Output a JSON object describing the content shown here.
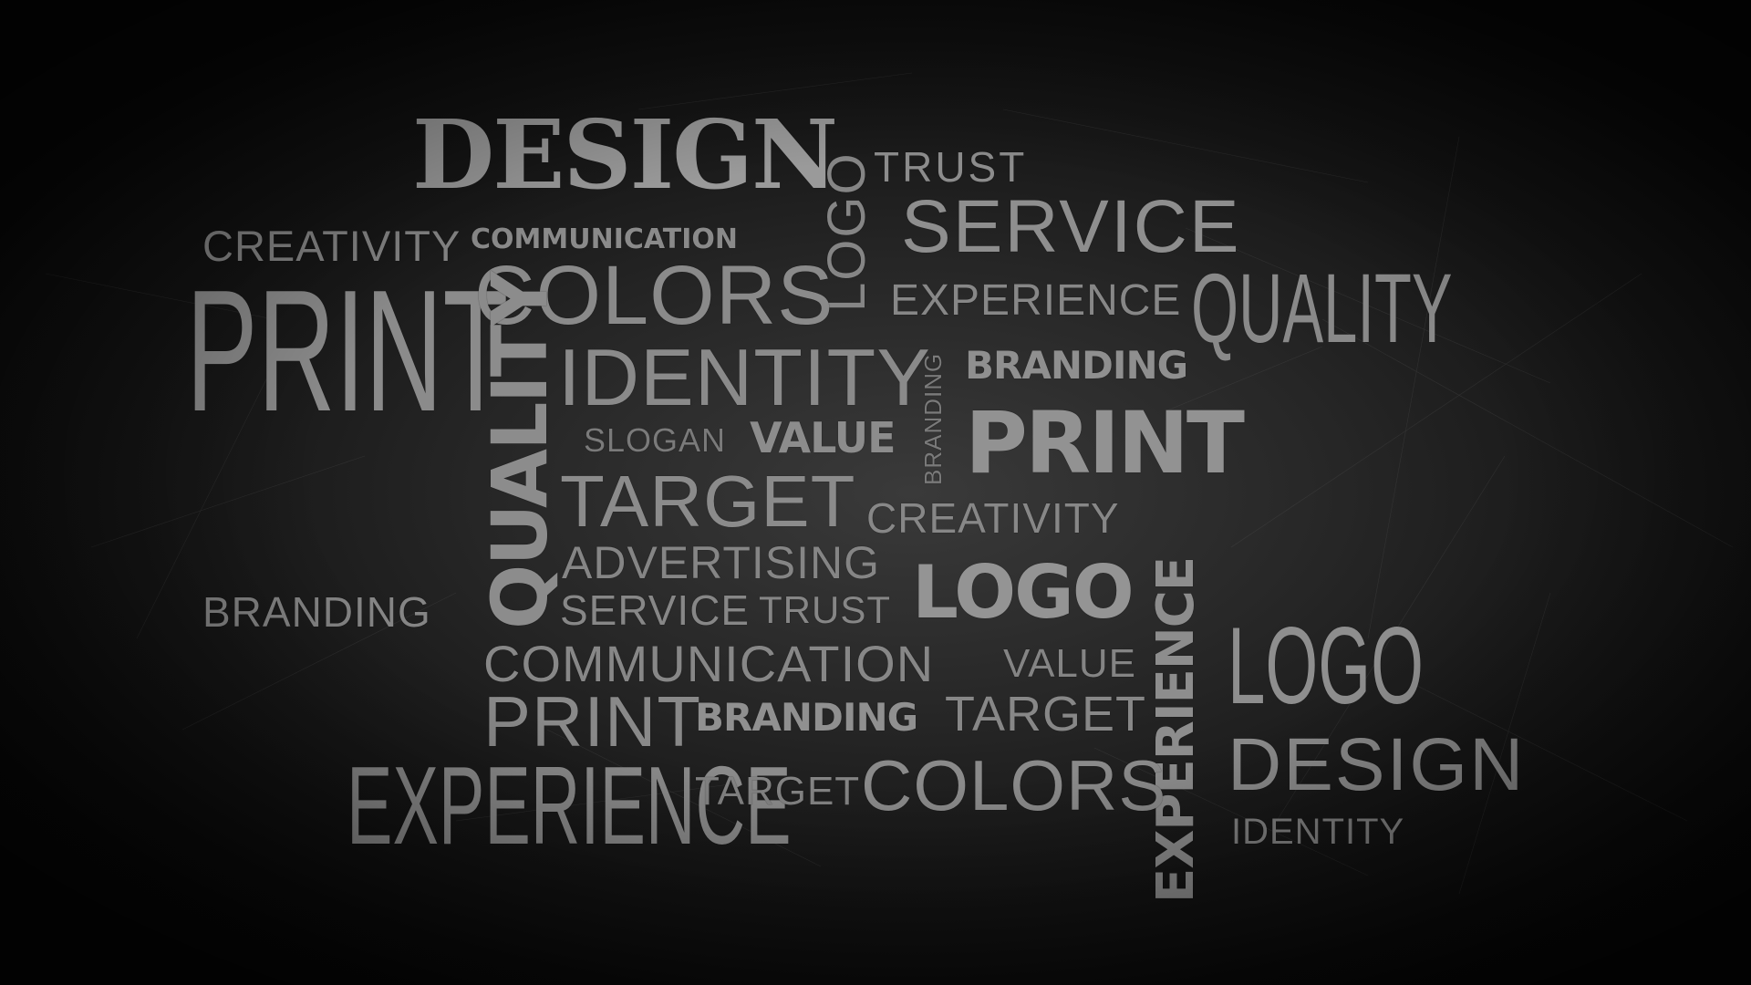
{
  "words": {
    "design_top": "DESIGN",
    "trust_top": "TRUST",
    "logo_vertical": "LOGO",
    "service_top": "SERVICE",
    "creativity_top": "CREATIVITY",
    "communication_top": "COMMUNICATION",
    "print_big": "PRINT",
    "colors_top": "COLORS",
    "experience_top": "EXPERIENCE",
    "quality_right": "QUALITY",
    "quality_vertical": "QUALITY",
    "identity_mid": "IDENTITY",
    "branding_vertical": "BRANDING",
    "branding_bold": "BRANDING",
    "slogan": "SLOGAN",
    "value_bold": "VALUE",
    "print_bold": "PRINT",
    "target_mid": "TARGET",
    "creativity_mid": "CREATIVITY",
    "experience_vertical": "EXPERIENCE",
    "advertising": "ADVERTISING",
    "logo_bold": "LOGO",
    "branding_left": "BRANDING",
    "service_mid": "SERVICE",
    "trust_mid": "TRUST",
    "logo_right": "LOGO",
    "communication_mid": "COMMUNICATION",
    "value_mid": "VALUE",
    "print_mid": "PRINT",
    "branding_bold2": "BRANDING",
    "target_right": "TARGET",
    "design_right": "DESIGN",
    "experience_big": "EXPERIENCE",
    "target_small": "TARGET",
    "colors_bottom": "COLORS",
    "identity_small": "IDENTITY"
  },
  "colors": {
    "text": "#8a8a8a",
    "background": "#1c1c1c"
  }
}
